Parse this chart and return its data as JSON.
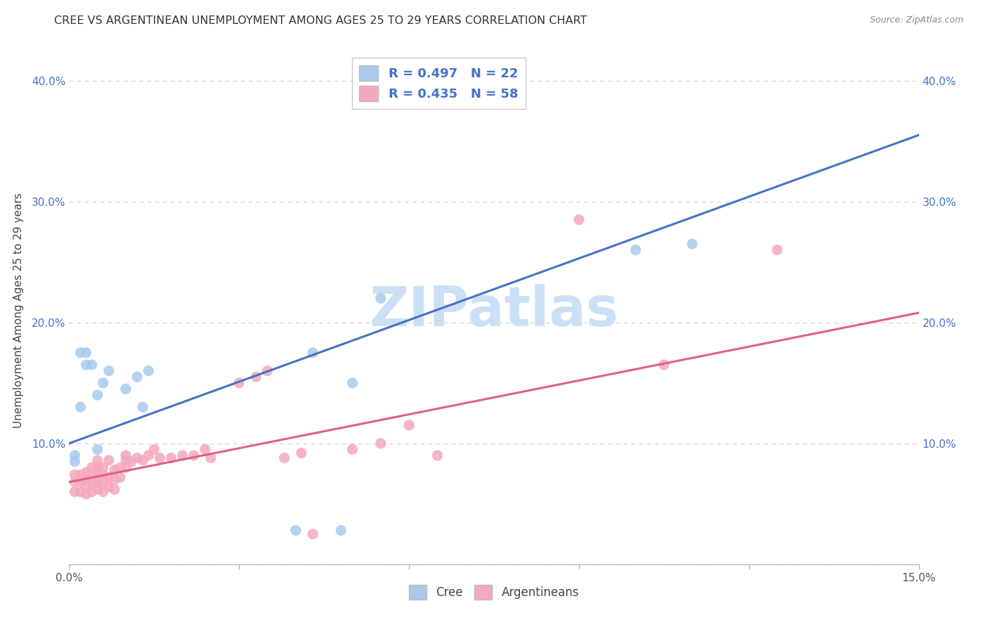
{
  "title": "CREE VS ARGENTINEAN UNEMPLOYMENT AMONG AGES 25 TO 29 YEARS CORRELATION CHART",
  "source": "Source: ZipAtlas.com",
  "ylabel": "Unemployment Among Ages 25 to 29 years",
  "xlim": [
    0.0,
    0.15
  ],
  "ylim": [
    0.0,
    0.42
  ],
  "xticks": [
    0.0,
    0.03,
    0.06,
    0.09,
    0.12,
    0.15
  ],
  "yticks": [
    0.0,
    0.1,
    0.2,
    0.3,
    0.4
  ],
  "xtick_labels": [
    "0.0%",
    "",
    "",
    "",
    "",
    "15.0%"
  ],
  "ytick_labels": [
    "",
    "10.0%",
    "20.0%",
    "30.0%",
    "40.0%"
  ],
  "right_ytick_labels": [
    "",
    "10.0%",
    "20.0%",
    "30.0%",
    "40.0%"
  ],
  "cree_scatter_color": "#a8caee",
  "argentinean_scatter_color": "#f5a8be",
  "cree_line_color": "#4472c4",
  "argentinean_line_color": "#e06080",
  "legend_color": "#4472c4",
  "cree_R": 0.497,
  "cree_N": 22,
  "argentinean_R": 0.435,
  "argentinean_N": 58,
  "cree_scatter_x": [
    0.001,
    0.001,
    0.002,
    0.002,
    0.003,
    0.003,
    0.004,
    0.005,
    0.005,
    0.006,
    0.007,
    0.01,
    0.012,
    0.013,
    0.014,
    0.04,
    0.043,
    0.048,
    0.05,
    0.055,
    0.1,
    0.11
  ],
  "cree_scatter_y": [
    0.085,
    0.09,
    0.13,
    0.175,
    0.165,
    0.175,
    0.165,
    0.095,
    0.14,
    0.15,
    0.16,
    0.145,
    0.155,
    0.13,
    0.16,
    0.028,
    0.175,
    0.028,
    0.15,
    0.22,
    0.26,
    0.265
  ],
  "arg_scatter_x": [
    0.001,
    0.001,
    0.001,
    0.002,
    0.002,
    0.002,
    0.003,
    0.003,
    0.003,
    0.003,
    0.004,
    0.004,
    0.004,
    0.004,
    0.005,
    0.005,
    0.005,
    0.005,
    0.005,
    0.006,
    0.006,
    0.006,
    0.006,
    0.007,
    0.007,
    0.007,
    0.008,
    0.008,
    0.008,
    0.009,
    0.009,
    0.01,
    0.01,
    0.01,
    0.011,
    0.012,
    0.013,
    0.014,
    0.015,
    0.016,
    0.018,
    0.02,
    0.022,
    0.024,
    0.025,
    0.03,
    0.033,
    0.035,
    0.038,
    0.041,
    0.043,
    0.05,
    0.055,
    0.06,
    0.065,
    0.09,
    0.105,
    0.125
  ],
  "arg_scatter_y": [
    0.06,
    0.068,
    0.074,
    0.06,
    0.068,
    0.074,
    0.058,
    0.064,
    0.07,
    0.076,
    0.06,
    0.068,
    0.074,
    0.08,
    0.062,
    0.068,
    0.074,
    0.08,
    0.086,
    0.06,
    0.068,
    0.074,
    0.08,
    0.064,
    0.072,
    0.086,
    0.062,
    0.07,
    0.078,
    0.072,
    0.08,
    0.08,
    0.086,
    0.09,
    0.085,
    0.088,
    0.086,
    0.09,
    0.095,
    0.088,
    0.088,
    0.09,
    0.09,
    0.095,
    0.088,
    0.15,
    0.155,
    0.16,
    0.088,
    0.092,
    0.025,
    0.095,
    0.1,
    0.115,
    0.09,
    0.285,
    0.165,
    0.26
  ],
  "cree_trend_x": [
    0.0,
    0.15
  ],
  "cree_trend_y": [
    0.1,
    0.355
  ],
  "arg_trend_x": [
    0.0,
    0.15
  ],
  "arg_trend_y": [
    0.068,
    0.208
  ],
  "watermark_text": "ZIPatlas",
  "watermark_color": "#cce0f5",
  "background_color": "#ffffff",
  "grid_color": "#cccccc",
  "legend1_label": "Cree",
  "legend2_label": "Argentineans"
}
